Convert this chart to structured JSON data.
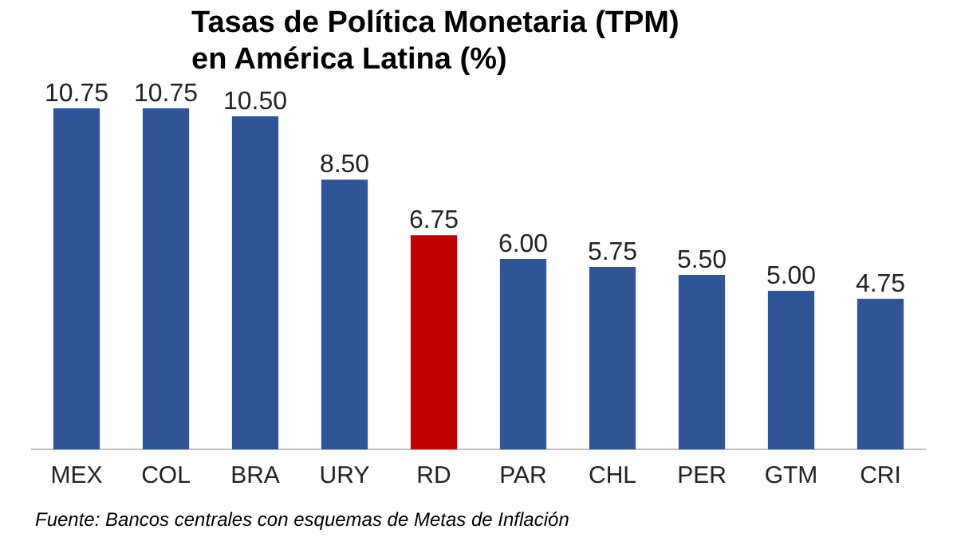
{
  "chart_data": {
    "type": "bar",
    "title": "Tasas de Política Monetaria (TPM)\nen América Latina (%)",
    "categories": [
      "MEX",
      "COL",
      "BRA",
      "URY",
      "RD",
      "PAR",
      "CHL",
      "PER",
      "GTM",
      "CRI"
    ],
    "values": [
      10.75,
      10.75,
      10.5,
      8.5,
      6.75,
      6.0,
      5.75,
      5.5,
      5.0,
      4.75
    ],
    "value_labels": [
      "10.75",
      "10.75",
      "10.50",
      "8.50",
      "6.75",
      "6.00",
      "5.75",
      "5.50",
      "5.00",
      "4.75"
    ],
    "colors": [
      "#2f5597",
      "#2f5597",
      "#2f5597",
      "#2f5597",
      "#c00000",
      "#2f5597",
      "#2f5597",
      "#2f5597",
      "#2f5597",
      "#2f5597"
    ],
    "annotations": [
      "Fuente: Bancos centrales con esquemas de Metas de Inflación"
    ]
  }
}
